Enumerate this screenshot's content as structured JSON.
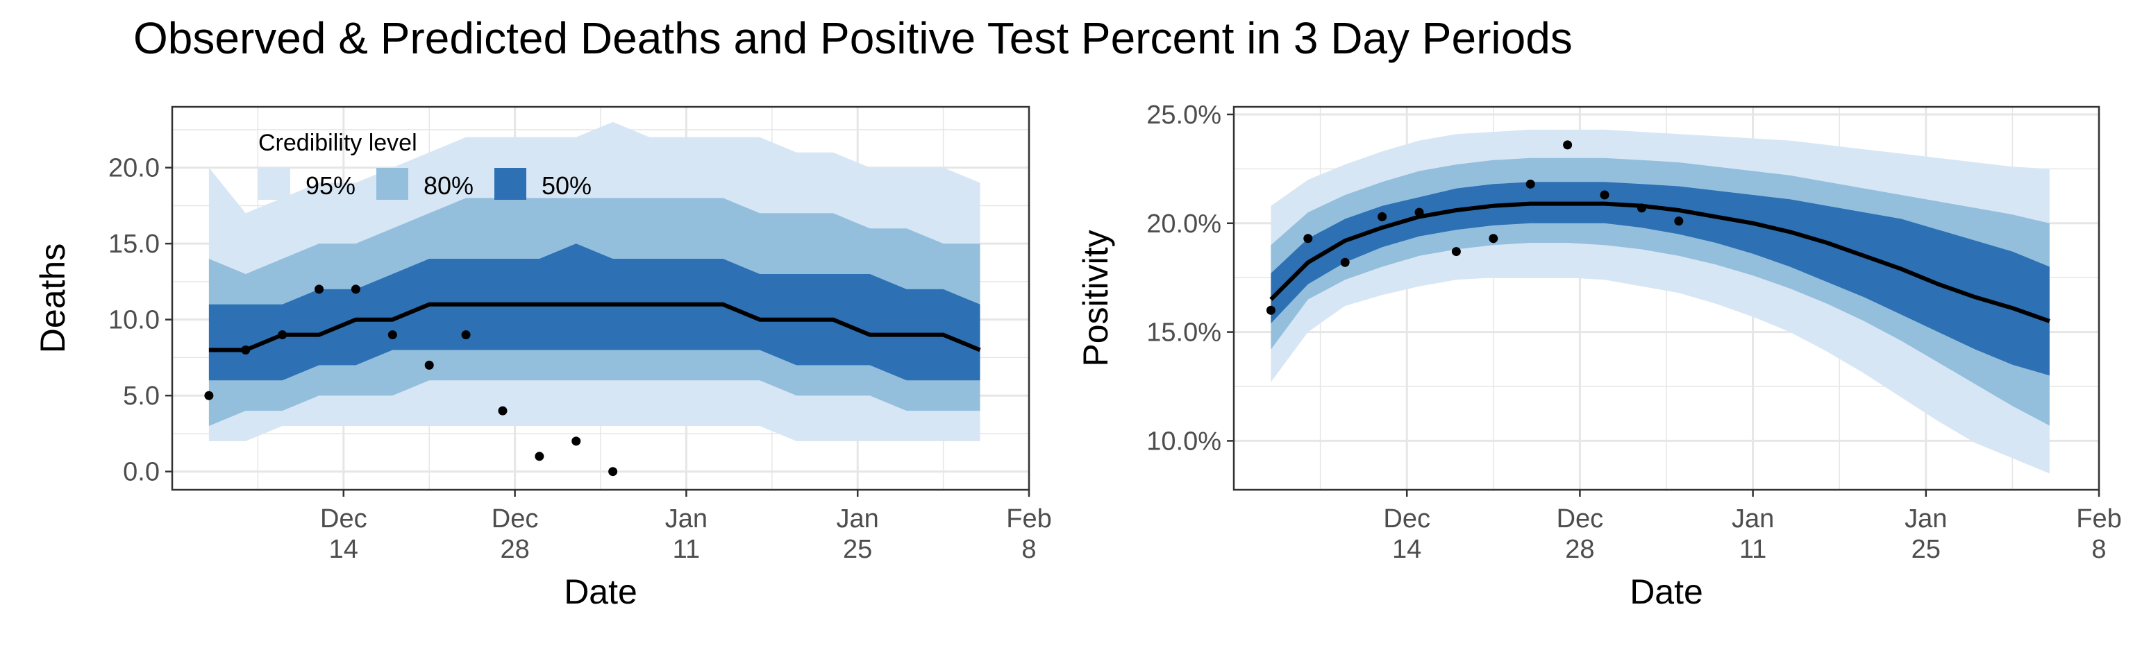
{
  "title": "Observed & Predicted Deaths and Positive Test Percent in 3 Day Periods",
  "colors": {
    "band95": "#D7E6F5",
    "band80": "#93BFDD",
    "band50": "#2D70B3",
    "line": "#000000",
    "point": "#000000",
    "grid": "#E6E6E6",
    "panelBorder": "#333333"
  },
  "chart_data": [
    {
      "type": "area",
      "name_id": "deaths",
      "xlabel": "Date",
      "ylabel": "Deaths",
      "x_domain": [
        "2020-11-30",
        "2021-02-08"
      ],
      "ylim": [
        -1.2,
        24.0
      ],
      "y_ticks": [
        0,
        5,
        10,
        15,
        20
      ],
      "y_tick_labels": [
        "0.0",
        "5.0",
        "10.0",
        "15.0",
        "20.0"
      ],
      "x_ticks": [
        "2020-12-14",
        "2020-12-28",
        "2021-01-11",
        "2021-01-25",
        "2021-02-08"
      ],
      "x_tick_labels": [
        [
          "Dec",
          "14"
        ],
        [
          "Dec",
          "28"
        ],
        [
          "Jan",
          "11"
        ],
        [
          "Jan",
          "25"
        ],
        [
          "Feb",
          "8"
        ]
      ],
      "grid": true,
      "legend": {
        "title": "Credibility level",
        "position": "top-left inside",
        "entries": [
          {
            "label": "95%",
            "color": "#D7E6F5"
          },
          {
            "label": "80%",
            "color": "#93BFDD"
          },
          {
            "label": "50%",
            "color": "#2D70B3"
          }
        ]
      },
      "x": [
        "2020-12-03",
        "2020-12-06",
        "2020-12-09",
        "2020-12-12",
        "2020-12-15",
        "2020-12-18",
        "2020-12-21",
        "2020-12-24",
        "2020-12-27",
        "2020-12-30",
        "2021-01-02",
        "2021-01-05",
        "2021-01-08",
        "2021-01-11",
        "2021-01-14",
        "2021-01-17",
        "2021-01-20",
        "2021-01-23",
        "2021-01-26",
        "2021-01-29",
        "2021-02-01",
        "2021-02-04"
      ],
      "median": [
        8,
        8,
        9,
        9,
        10,
        10,
        11,
        11,
        11,
        11,
        11,
        11,
        11,
        11,
        11,
        10,
        10,
        10,
        9,
        9,
        9,
        8
      ],
      "bands": {
        "95": {
          "lower": [
            2,
            2,
            3,
            3,
            3,
            3,
            3,
            3,
            3,
            3,
            3,
            3,
            3,
            3,
            3,
            3,
            2,
            2,
            2,
            2,
            2,
            2
          ],
          "upper": [
            20,
            17,
            18,
            19,
            19,
            20,
            21,
            22,
            22,
            22,
            22,
            23,
            22,
            22,
            22,
            22,
            21,
            21,
            20,
            20,
            20,
            19
          ]
        },
        "80": {
          "lower": [
            3,
            4,
            4,
            5,
            5,
            5,
            6,
            6,
            6,
            6,
            6,
            6,
            6,
            6,
            6,
            6,
            5,
            5,
            5,
            4,
            4,
            4
          ],
          "upper": [
            14,
            13,
            14,
            15,
            15,
            16,
            17,
            18,
            18,
            18,
            18,
            18,
            18,
            18,
            18,
            17,
            17,
            17,
            16,
            16,
            15,
            15
          ]
        },
        "50": {
          "lower": [
            6,
            6,
            6,
            7,
            7,
            8,
            8,
            8,
            8,
            8,
            8,
            8,
            8,
            8,
            8,
            8,
            7,
            7,
            7,
            6,
            6,
            6
          ],
          "upper": [
            11,
            11,
            11,
            12,
            12,
            13,
            14,
            14,
            14,
            14,
            15,
            14,
            14,
            14,
            14,
            13,
            13,
            13,
            13,
            12,
            12,
            11
          ]
        }
      },
      "observed": [
        {
          "x": "2020-12-03",
          "y": 5
        },
        {
          "x": "2020-12-06",
          "y": 8
        },
        {
          "x": "2020-12-09",
          "y": 9
        },
        {
          "x": "2020-12-12",
          "y": 12
        },
        {
          "x": "2020-12-15",
          "y": 12
        },
        {
          "x": "2020-12-18",
          "y": 9
        },
        {
          "x": "2020-12-21",
          "y": 7
        },
        {
          "x": "2020-12-24",
          "y": 9
        },
        {
          "x": "2020-12-27",
          "y": 4
        },
        {
          "x": "2020-12-30",
          "y": 1
        },
        {
          "x": "2021-01-02",
          "y": 2
        },
        {
          "x": "2021-01-05",
          "y": 0
        }
      ]
    },
    {
      "type": "area",
      "name_id": "positivity",
      "xlabel": "Date",
      "ylabel": "Positivity",
      "x_domain": [
        "2020-11-30",
        "2021-02-08"
      ],
      "ylim": [
        7.75,
        25.35
      ],
      "y_ticks": [
        10,
        15,
        20,
        25
      ],
      "y_tick_labels": [
        "10.0%",
        "15.0%",
        "20.0%",
        "25.0%"
      ],
      "x_ticks": [
        "2020-12-14",
        "2020-12-28",
        "2021-01-11",
        "2021-01-25",
        "2021-02-08"
      ],
      "x_tick_labels": [
        [
          "Dec",
          "14"
        ],
        [
          "Dec",
          "28"
        ],
        [
          "Jan",
          "11"
        ],
        [
          "Jan",
          "25"
        ],
        [
          "Feb",
          "8"
        ]
      ],
      "grid": true,
      "x": [
        "2020-12-03",
        "2020-12-06",
        "2020-12-09",
        "2020-12-12",
        "2020-12-15",
        "2020-12-18",
        "2020-12-21",
        "2020-12-24",
        "2020-12-27",
        "2020-12-30",
        "2021-01-02",
        "2021-01-05",
        "2021-01-08",
        "2021-01-11",
        "2021-01-14",
        "2021-01-17",
        "2021-01-20",
        "2021-01-23",
        "2021-01-26",
        "2021-01-29",
        "2021-02-01",
        "2021-02-04"
      ],
      "median": [
        16.5,
        18.2,
        19.2,
        19.8,
        20.3,
        20.6,
        20.8,
        20.9,
        20.9,
        20.9,
        20.8,
        20.6,
        20.3,
        20.0,
        19.6,
        19.1,
        18.5,
        17.9,
        17.2,
        16.6,
        16.1,
        15.5
      ],
      "bands": {
        "95": {
          "lower": [
            12.7,
            15.0,
            16.2,
            16.7,
            17.1,
            17.4,
            17.5,
            17.5,
            17.5,
            17.4,
            17.1,
            16.8,
            16.3,
            15.7,
            15.0,
            14.1,
            13.1,
            12.0,
            10.9,
            9.9,
            9.2,
            8.5
          ],
          "upper": [
            20.8,
            22.0,
            22.7,
            23.3,
            23.8,
            24.1,
            24.2,
            24.3,
            24.3,
            24.3,
            24.2,
            24.1,
            24.0,
            23.9,
            23.8,
            23.6,
            23.4,
            23.2,
            23.0,
            22.8,
            22.6,
            22.5
          ]
        },
        "80": {
          "lower": [
            14.2,
            16.5,
            17.4,
            18.0,
            18.5,
            18.8,
            19.0,
            19.1,
            19.1,
            19.0,
            18.8,
            18.5,
            18.1,
            17.6,
            17.0,
            16.3,
            15.5,
            14.6,
            13.6,
            12.6,
            11.6,
            10.7
          ],
          "upper": [
            19.0,
            20.5,
            21.3,
            21.9,
            22.4,
            22.7,
            22.9,
            23.0,
            23.0,
            23.0,
            22.9,
            22.8,
            22.6,
            22.4,
            22.2,
            21.9,
            21.6,
            21.3,
            21.0,
            20.7,
            20.4,
            20.0
          ]
        },
        "50": {
          "lower": [
            15.4,
            17.2,
            18.2,
            18.9,
            19.4,
            19.7,
            19.9,
            20.0,
            20.0,
            20.0,
            19.8,
            19.5,
            19.1,
            18.6,
            18.0,
            17.3,
            16.6,
            15.8,
            15.0,
            14.2,
            13.5,
            13.0
          ],
          "upper": [
            17.7,
            19.3,
            20.2,
            20.8,
            21.2,
            21.6,
            21.8,
            21.9,
            21.9,
            21.9,
            21.8,
            21.7,
            21.5,
            21.3,
            21.1,
            20.8,
            20.5,
            20.2,
            19.7,
            19.2,
            18.7,
            18.0
          ]
        }
      },
      "observed": [
        {
          "x": "2020-12-03",
          "y": 16.0
        },
        {
          "x": "2020-12-06",
          "y": 19.3
        },
        {
          "x": "2020-12-09",
          "y": 18.2
        },
        {
          "x": "2020-12-12",
          "y": 20.3
        },
        {
          "x": "2020-12-15",
          "y": 20.5
        },
        {
          "x": "2020-12-18",
          "y": 18.7
        },
        {
          "x": "2020-12-21",
          "y": 19.3
        },
        {
          "x": "2020-12-24",
          "y": 21.8
        },
        {
          "x": "2020-12-27",
          "y": 23.6
        },
        {
          "x": "2020-12-30",
          "y": 21.3
        },
        {
          "x": "2021-01-02",
          "y": 20.7
        },
        {
          "x": "2021-01-05",
          "y": 20.1
        }
      ]
    }
  ]
}
